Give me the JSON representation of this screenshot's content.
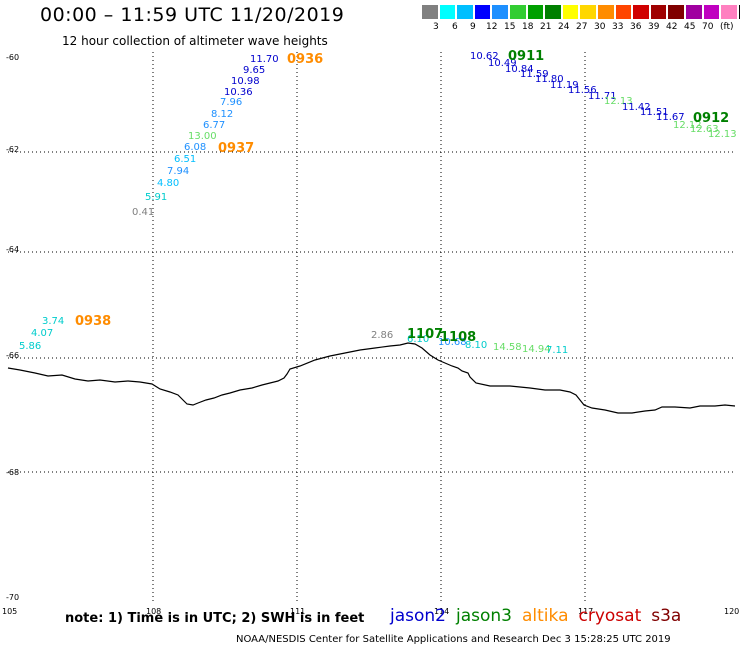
{
  "title": "00:00 – 11:59 UTC 11/20/2019",
  "subtitle": "12 hour collection of altimeter wave heights",
  "color_scale": {
    "colors": [
      "#808080",
      "#00ffff",
      "#00bfff",
      "#0000ff",
      "#1e90ff",
      "#32cd32",
      "#00a000",
      "#008000",
      "#ffff00",
      "#ffd700",
      "#ff8c00",
      "#ff4500",
      "#d00000",
      "#a00000",
      "#800000",
      "#a000a0",
      "#c000c0",
      "#ff80c0",
      "#000000"
    ],
    "labels": [
      "3",
      "6",
      "9",
      "12",
      "15",
      "18",
      "21",
      "24",
      "27",
      "30",
      "33",
      "36",
      "39",
      "42",
      "45",
      "70",
      "(ft)"
    ]
  },
  "axes": {
    "y_ticks": [
      "-60",
      "-62",
      "-64",
      "-66",
      "-68",
      "-70"
    ],
    "x_ticks": [
      "105",
      "108",
      "111",
      "114",
      "117",
      "120"
    ]
  },
  "passes": [
    {
      "time": "0936",
      "color": "#ff8c00"
    },
    {
      "time": "0937",
      "color": "#ff8c00"
    },
    {
      "time": "0938",
      "color": "#ff8c00"
    },
    {
      "time": "0911",
      "color": "#008000"
    },
    {
      "time": "0912",
      "color": "#008000"
    },
    {
      "time": "1107",
      "color": "#008000"
    },
    {
      "time": "1108",
      "color": "#008000"
    }
  ],
  "values": [
    {
      "v": "11.70",
      "c": "#0000cd"
    },
    {
      "v": "9.65",
      "c": "#0000cd"
    },
    {
      "v": "10.98",
      "c": "#0000cd"
    },
    {
      "v": "10.36",
      "c": "#0000cd"
    },
    {
      "v": "7.96",
      "c": "#1e90ff"
    },
    {
      "v": "8.12",
      "c": "#1e90ff"
    },
    {
      "v": "6.77",
      "c": "#1e90ff"
    },
    {
      "v": "13.00",
      "c": "#66dd66"
    },
    {
      "v": "6.08",
      "c": "#1e90ff"
    },
    {
      "v": "6.51",
      "c": "#00bfff"
    },
    {
      "v": "7.94",
      "c": "#1e90ff"
    },
    {
      "v": "4.80",
      "c": "#00bfff"
    },
    {
      "v": "5.91",
      "c": "#00cccc"
    },
    {
      "v": "0.41",
      "c": "#808080"
    },
    {
      "v": "3.74",
      "c": "#00cccc"
    },
    {
      "v": "4.07",
      "c": "#00cccc"
    },
    {
      "v": "5.86",
      "c": "#00cccc"
    },
    {
      "v": "10.62",
      "c": "#0000cd"
    },
    {
      "v": "10.49",
      "c": "#0000cd"
    },
    {
      "v": "10.84",
      "c": "#0000cd"
    },
    {
      "v": "11.59",
      "c": "#0000cd"
    },
    {
      "v": "11.80",
      "c": "#0000cd"
    },
    {
      "v": "11.19",
      "c": "#0000cd"
    },
    {
      "v": "11.56",
      "c": "#0000cd"
    },
    {
      "v": "11.71",
      "c": "#0000cd"
    },
    {
      "v": "12.13",
      "c": "#66dd66"
    },
    {
      "v": "11.42",
      "c": "#0000cd"
    },
    {
      "v": "11.51",
      "c": "#0000cd"
    },
    {
      "v": "11.67",
      "c": "#0000cd"
    },
    {
      "v": "12.12",
      "c": "#66dd66"
    },
    {
      "v": "12.63",
      "c": "#66dd66"
    },
    {
      "v": "12.13",
      "c": "#66dd66"
    },
    {
      "v": "2.86",
      "c": "#808080"
    },
    {
      "v": "6.10",
      "c": "#00cccc"
    },
    {
      "v": "10.68",
      "c": "#1e90ff"
    },
    {
      "v": "8.10",
      "c": "#00cccc"
    },
    {
      "v": "14.58",
      "c": "#66dd66"
    },
    {
      "v": "14.94",
      "c": "#66dd66"
    },
    {
      "v": "7.11",
      "c": "#00cccc"
    }
  ],
  "note": "note: 1) Time is in UTC; 2) SWH is in feet",
  "legend": [
    {
      "name": "jason2",
      "color": "#0000cd"
    },
    {
      "name": "jason3",
      "color": "#008000"
    },
    {
      "name": "altika",
      "color": "#ff8c00"
    },
    {
      "name": "cryosat",
      "color": "#cc0000"
    },
    {
      "name": "s3a",
      "color": "#800000"
    }
  ],
  "credit": "NOAA/NESDIS Center for Satellite Applications and Research    Dec  3 15:28:25 UTC 2019"
}
